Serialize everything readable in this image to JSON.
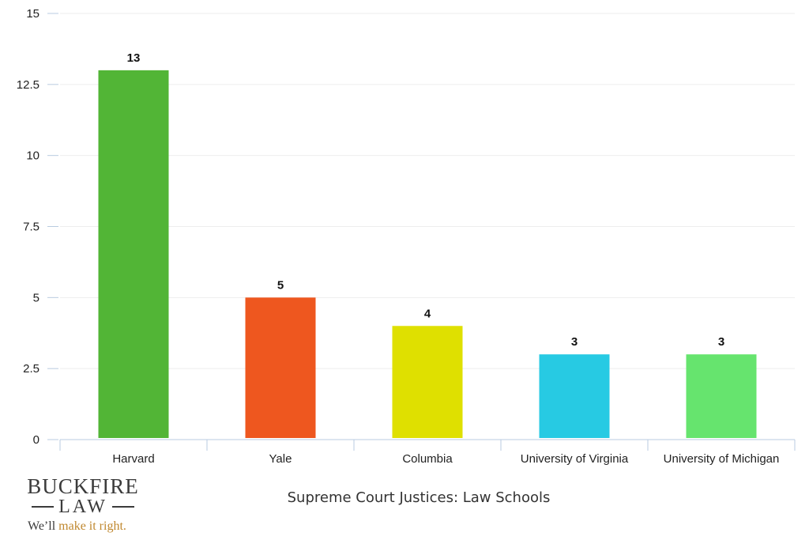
{
  "chart_data": {
    "type": "bar",
    "title": "Supreme Court Justices: Law Schools",
    "categories": [
      "Harvard",
      "Yale",
      "Columbia",
      "University of Virginia",
      "University of Michigan"
    ],
    "values": [
      13,
      5,
      4,
      3,
      3
    ],
    "data_labels": [
      "13",
      "5",
      "4",
      "3",
      "3"
    ],
    "colors": [
      "#52b536",
      "#ee571f",
      "#dfe000",
      "#27cae3",
      "#66e46e"
    ],
    "ylim": [
      0,
      15
    ],
    "yticks": [
      0,
      2.5,
      5,
      7.5,
      10,
      12.5,
      15
    ],
    "ytick_labels": [
      "0",
      "2.5",
      "5",
      "7.5",
      "10",
      "12.5",
      "15"
    ],
    "xlabel": "",
    "ylabel": "",
    "grid": true,
    "legend": false
  },
  "logo": {
    "name_top": "BUCKFIRE",
    "name_bottom": "LAW",
    "tagline_lead": "We’ll ",
    "tagline_accent": "make it right."
  }
}
